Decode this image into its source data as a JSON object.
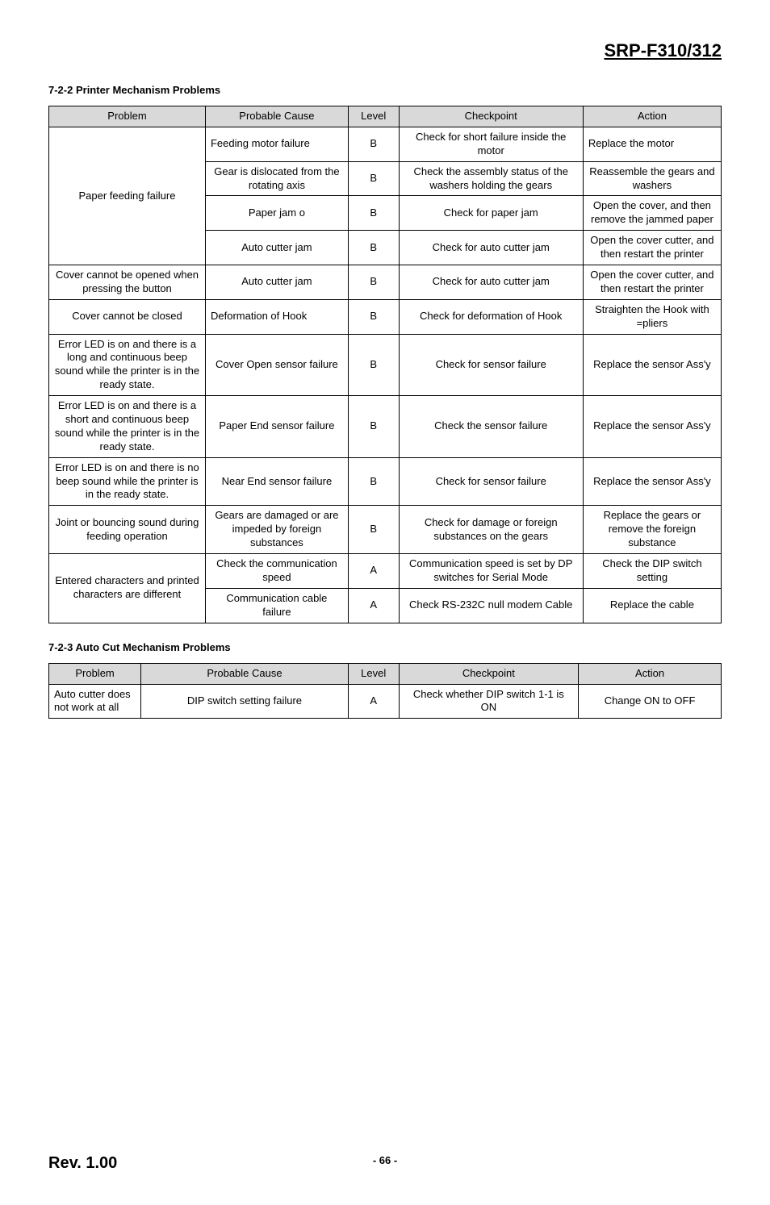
{
  "doc_title": "SRP-F310/312",
  "section1": {
    "heading": "7-2-2 Printer Mechanism Problems",
    "columns": [
      "Problem",
      "Probable Cause",
      "Level",
      "Checkpoint",
      "Action"
    ],
    "header_bg": "#d9d9d9",
    "rows": [
      {
        "problem": "Paper feeding failure",
        "problem_rowspan": 4,
        "cause": "Feeding motor failure",
        "level": "B",
        "checkpoint": "Check for short failure inside the motor",
        "action": "Replace the motor"
      },
      {
        "cause": "Gear is dislocated from the rotating axis",
        "level": "B",
        "checkpoint": "Check the assembly status of the washers holding the gears",
        "action": "Reassemble the gears and washers"
      },
      {
        "cause": "Paper jam o",
        "level": "B",
        "checkpoint": "Check for   paper jam",
        "action": "Open the cover, and then remove the jammed paper"
      },
      {
        "cause": "Auto cutter jam",
        "level": "B",
        "checkpoint": "Check for auto cutter jam",
        "action": "Open the cover cutter, and then restart the printer"
      },
      {
        "problem": "Cover cannot be opened when pressing the button",
        "problem_rowspan": 1,
        "cause": "Auto cutter jam",
        "level": "B",
        "checkpoint": "Check for auto cutter jam",
        "action": "Open the cover cutter, and then restart the printer"
      },
      {
        "problem": "Cover cannot be closed",
        "problem_rowspan": 1,
        "cause": "Deformation of Hook",
        "level": "B",
        "checkpoint": "Check for deformation of Hook",
        "action": "Straighten the Hook with =pliers"
      },
      {
        "problem": "Error LED is on and there is a long and continuous beep sound while the printer is in the ready state.",
        "problem_rowspan": 1,
        "cause": "Cover Open sensor failure",
        "level": "B",
        "checkpoint": "Check for sensor failure",
        "action": "Replace the sensor Ass'y"
      },
      {
        "problem": "Error LED is on and there is a short and continuous beep sound while the printer is in the ready state.",
        "problem_rowspan": 1,
        "cause": "Paper End sensor failure",
        "level": "B",
        "checkpoint": "Check the sensor failure",
        "action": "Replace the sensor Ass'y"
      },
      {
        "problem": "Error LED is on and there is no beep sound while the printer is in the ready state.",
        "problem_rowspan": 1,
        "cause": "Near End sensor failure",
        "level": "B",
        "checkpoint": "Check for sensor failure",
        "action": "Replace the sensor Ass'y"
      },
      {
        "problem": "Joint or bouncing sound during feeding operation",
        "problem_rowspan": 1,
        "cause": "Gears are damaged or are impeded by foreign substances",
        "level": "B",
        "checkpoint": "Check for damage or foreign substances on the gears",
        "action": "Replace the gears or remove the foreign substance"
      },
      {
        "problem": "Entered characters and printed characters are different",
        "problem_rowspan": 2,
        "cause": "Check the communication speed",
        "level": "A",
        "checkpoint": "Communication speed is set by DP switches for Serial Mode",
        "action": "Check the DIP switch setting"
      },
      {
        "cause": "Communication cable failure",
        "level": "A",
        "checkpoint": "Check RS-232C null modem Cable",
        "action": "Replace the cable"
      }
    ]
  },
  "section2": {
    "heading": "7-2-3 Auto Cut Mechanism Problems",
    "columns": [
      "Problem",
      "Probable Cause",
      "Level",
      "Checkpoint",
      "Action"
    ],
    "header_bg": "#d9d9d9",
    "rows": [
      {
        "problem": "Auto cutter does not work at all",
        "cause": "DIP switch setting failure",
        "level": "A",
        "checkpoint": "Check whether DIP switch 1-1 is ON",
        "action": "Change ON to OFF"
      }
    ]
  },
  "footer": {
    "rev": "Rev. 1.00",
    "page": "- 66 -"
  }
}
